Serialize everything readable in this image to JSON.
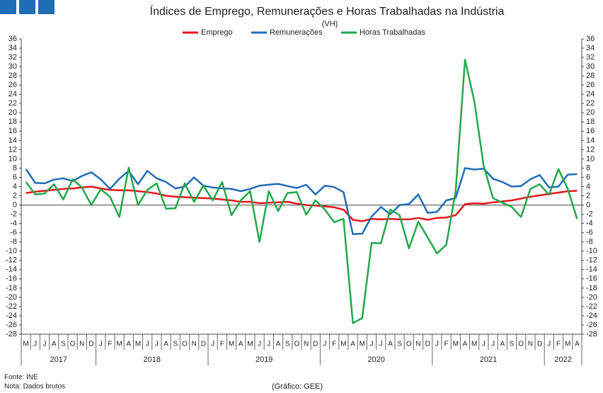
{
  "chart_data": {
    "type": "line",
    "title": "Índices de Emprego, Remunerações e Horas Trabalhadas na Indústria",
    "subtitle": "(VH)",
    "year_groups": [
      {
        "label": "2017",
        "months": [
          "M",
          "J",
          "J",
          "A",
          "S",
          "O",
          "N",
          "D"
        ]
      },
      {
        "label": "2018",
        "months": [
          "J",
          "F",
          "M",
          "A",
          "M",
          "J",
          "J",
          "A",
          "S",
          "O",
          "N",
          "D"
        ]
      },
      {
        "label": "2019",
        "months": [
          "J",
          "F",
          "M",
          "A",
          "M",
          "J",
          "J",
          "A",
          "S",
          "O",
          "N",
          "D"
        ]
      },
      {
        "label": "2020",
        "months": [
          "J",
          "F",
          "M",
          "A",
          "M",
          "J",
          "J",
          "A",
          "S",
          "O",
          "N",
          "D"
        ]
      },
      {
        "label": "2021",
        "months": [
          "J",
          "F",
          "M",
          "A",
          "M",
          "J",
          "J",
          "A",
          "S",
          "O",
          "N",
          "D"
        ]
      },
      {
        "label": "2022",
        "months": [
          "J",
          "F",
          "M",
          "A"
        ]
      }
    ],
    "series": [
      {
        "name": "Emprego",
        "color": "#e8141c",
        "values": [
          2.6,
          2.9,
          3.1,
          3.3,
          3.5,
          3.6,
          3.8,
          4.0,
          3.6,
          3.3,
          3.2,
          3.2,
          3.0,
          2.8,
          2.5,
          2.0,
          1.8,
          1.7,
          1.6,
          1.5,
          1.4,
          1.2,
          1.0,
          0.7,
          0.7,
          0.4,
          0.5,
          0.6,
          0.7,
          0.3,
          0.0,
          -0.1,
          -0.3,
          -0.5,
          -1.0,
          -3.2,
          -3.5,
          -3.0,
          -3.1,
          -3.0,
          -3.1,
          -3.1,
          -2.8,
          -3.2,
          -2.8,
          -2.7,
          -2.2,
          0.2,
          0.4,
          0.3,
          0.6,
          0.8,
          1.0,
          1.4,
          1.8,
          2.1,
          2.4,
          2.7,
          3.0,
          3.1
        ]
      },
      {
        "name": "Remunerações",
        "color": "#1f6db5",
        "values": [
          7.8,
          4.8,
          4.7,
          5.5,
          5.8,
          5.2,
          6.3,
          7.1,
          5.6,
          3.5,
          5.7,
          7.4,
          4.5,
          7.4,
          5.8,
          5.0,
          3.6,
          4.0,
          6.0,
          4.2,
          3.8,
          3.6,
          3.5,
          3.0,
          3.5,
          4.2,
          4.4,
          4.6,
          4.1,
          3.7,
          4.4,
          2.3,
          4.2,
          3.9,
          2.8,
          -6.3,
          -6.2,
          -2.5,
          -0.4,
          -2.0,
          0.0,
          0.2,
          2.3,
          -1.7,
          -1.5,
          1.0,
          1.5,
          8.0,
          7.7,
          7.9,
          5.7,
          5.0,
          4.0,
          4.1,
          5.6,
          6.5,
          3.8,
          4.0,
          6.6,
          6.7
        ]
      },
      {
        "name": "Horas Trabalhadas",
        "color": "#22a84a",
        "values": [
          5.0,
          2.3,
          2.5,
          4.5,
          1.2,
          5.6,
          3.8,
          0.0,
          3.4,
          1.8,
          -2.6,
          8.1,
          0.0,
          3.3,
          4.7,
          -0.8,
          -0.7,
          4.7,
          0.7,
          4.2,
          1.0,
          5.0,
          -2.2,
          1.0,
          3.0,
          -8.0,
          3.0,
          -1.3,
          2.6,
          2.8,
          -2.1,
          1.0,
          -1.0,
          -3.7,
          -3.0,
          -25.6,
          -24.5,
          -8.2,
          -8.3,
          -1.0,
          -2.2,
          -9.4,
          -3.6,
          -7.0,
          -10.5,
          -8.6,
          3.0,
          31.5,
          22.5,
          8.5,
          1.5,
          0.5,
          -0.4,
          -2.6,
          3.5,
          4.5,
          2.2,
          7.8,
          3.5,
          -3.0
        ]
      }
    ],
    "ylim": [
      -28,
      36
    ],
    "yticks": [
      -28,
      -26,
      -24,
      -22,
      -20,
      -18,
      -16,
      -14,
      -12,
      -10,
      -8,
      -6,
      -4,
      -2,
      0,
      2,
      4,
      6,
      8,
      10,
      12,
      14,
      16,
      18,
      20,
      22,
      24,
      26,
      28,
      30,
      32,
      34,
      36
    ],
    "grid": false,
    "source": "Fonte: INE",
    "note": "Nota: Dados brutos",
    "credit": "(Gráfico: GEE)"
  }
}
